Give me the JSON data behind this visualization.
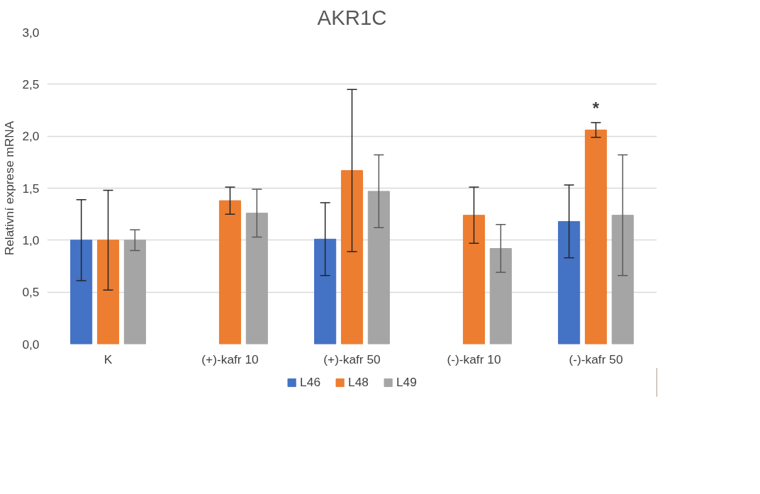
{
  "chart_data": {
    "type": "bar",
    "title": "AKR1C",
    "ylabel": "Relativní exprese mRNA",
    "categories": [
      "K",
      "(+)-kafr 10",
      "(+)-kafr 50",
      "(-)-kafr 10",
      "(-)-kafr 50"
    ],
    "series": [
      {
        "name": "L46",
        "color": "#4472c4",
        "values": [
          1.0,
          null,
          1.01,
          null,
          1.18
        ],
        "errors": [
          0.39,
          null,
          0.35,
          null,
          0.35
        ]
      },
      {
        "name": "L48",
        "color": "#ed7d31",
        "values": [
          1.0,
          1.38,
          1.67,
          1.24,
          2.06
        ],
        "errors": [
          0.48,
          0.13,
          0.78,
          0.27,
          0.07
        ]
      },
      {
        "name": "L49",
        "color": "#a5a5a5",
        "values": [
          1.0,
          1.26,
          1.47,
          0.92,
          1.24
        ],
        "errors": [
          0.1,
          0.23,
          0.35,
          0.23,
          0.58
        ]
      }
    ],
    "ylim": [
      0,
      3.0
    ],
    "yticks": [
      {
        "value": 0,
        "label": "0,0"
      },
      {
        "value": 0.5,
        "label": "0,5"
      },
      {
        "value": 1.0,
        "label": "1,0"
      },
      {
        "value": 1.5,
        "label": "1,5"
      },
      {
        "value": 2.0,
        "label": "2,0"
      },
      {
        "value": 2.5,
        "label": "2,5"
      },
      {
        "value": 3.0,
        "label": "3,0"
      }
    ],
    "grid": "y",
    "legend": "bottom",
    "annotations": [
      {
        "text": "*",
        "x": "(-)-kafr 50",
        "y": 2.14
      }
    ]
  }
}
